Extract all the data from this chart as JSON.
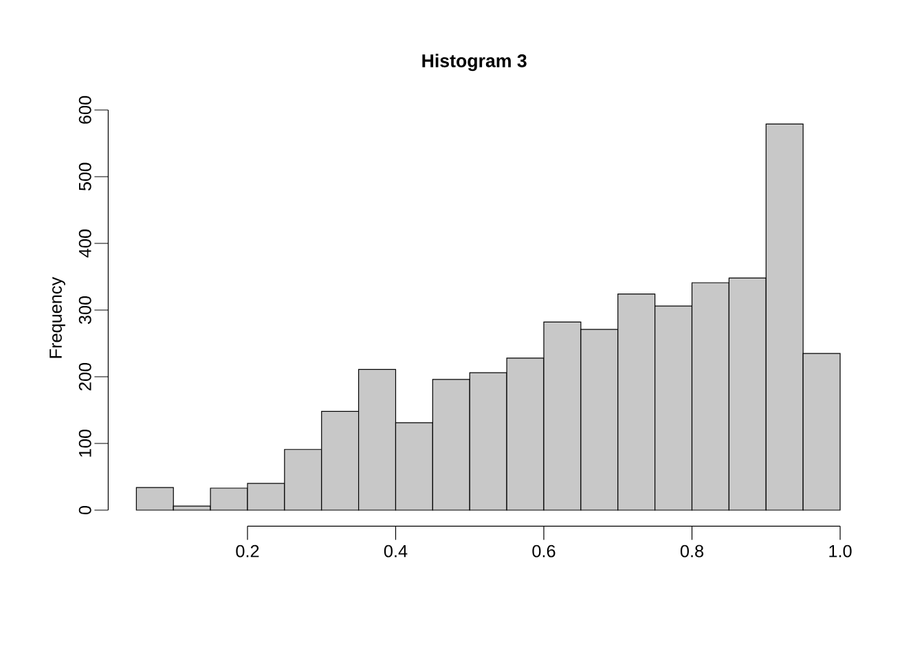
{
  "chart_data": {
    "type": "histogram",
    "title": "Histogram 3",
    "ylabel": "Frequency",
    "bins": [
      0.05,
      0.1,
      0.15,
      0.2,
      0.25,
      0.3,
      0.35,
      0.4,
      0.45,
      0.5,
      0.55,
      0.6,
      0.65,
      0.7,
      0.75,
      0.8,
      0.85,
      0.9,
      0.95,
      1.0
    ],
    "values": [
      34,
      6,
      33,
      40,
      91,
      148,
      211,
      131,
      196,
      206,
      228,
      282,
      271,
      324,
      306,
      341,
      348,
      579,
      235
    ],
    "color": "#c8c8c8",
    "xlim": [
      0.012,
      1.0
    ],
    "ylim": [
      -24,
      600
    ],
    "xticks": [
      0.2,
      0.4,
      0.6,
      0.8,
      {
        "value": 1.0,
        "label": "1.0"
      }
    ],
    "yticks": [
      0,
      100,
      200,
      300,
      400,
      500,
      600
    ],
    "grid": false
  }
}
